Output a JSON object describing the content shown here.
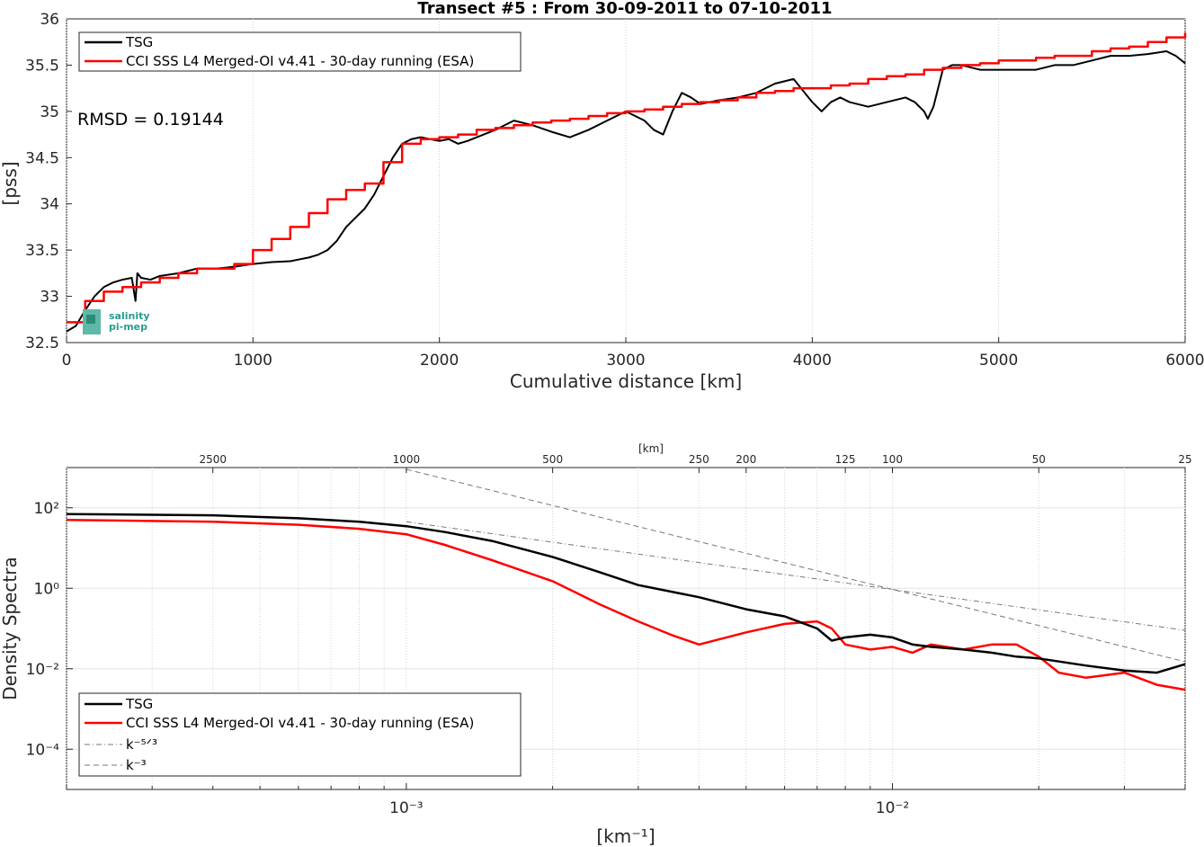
{
  "chart_data": [
    {
      "type": "line",
      "title": "Transect #5 : From 30-09-2011 to 07-10-2011",
      "xlabel": "Cumulative distance [km]",
      "ylabel": "[pss]",
      "xlim": [
        0,
        6000
      ],
      "ylim": [
        32.5,
        36
      ],
      "x_ticks": [
        "0",
        "1000",
        "2000",
        "3000",
        "4000",
        "5000",
        "6000"
      ],
      "y_ticks": [
        "32.5",
        "33",
        "33.5",
        "34",
        "34.5",
        "35",
        "35.5",
        "36"
      ],
      "grid": "vertical",
      "legend_position": "top-left",
      "annotation": "RMSD = 0.19144",
      "logo": {
        "line1": "salinity",
        "line2": "pi-mep"
      },
      "series": [
        {
          "name": "TSG",
          "color": "#000000",
          "x": [
            0,
            50,
            100,
            150,
            200,
            250,
            300,
            350,
            370,
            380,
            400,
            450,
            500,
            600,
            700,
            800,
            900,
            1000,
            1100,
            1200,
            1250,
            1300,
            1350,
            1400,
            1450,
            1500,
            1550,
            1600,
            1650,
            1700,
            1750,
            1800,
            1850,
            1900,
            1950,
            2000,
            2050,
            2100,
            2150,
            2200,
            2300,
            2350,
            2400,
            2500,
            2600,
            2700,
            2800,
            2900,
            3000,
            3100,
            3150,
            3200,
            3250,
            3300,
            3350,
            3400,
            3500,
            3600,
            3700,
            3800,
            3900,
            4000,
            4050,
            4100,
            4150,
            4200,
            4300,
            4400,
            4500,
            4550,
            4600,
            4620,
            4650,
            4700,
            4750,
            4800,
            4900,
            5000,
            5100,
            5200,
            5300,
            5400,
            5500,
            5600,
            5700,
            5800,
            5900,
            5950,
            6000
          ],
          "y": [
            32.62,
            32.68,
            32.85,
            33.0,
            33.1,
            33.15,
            33.18,
            33.2,
            32.95,
            33.25,
            33.2,
            33.18,
            33.22,
            33.25,
            33.3,
            33.3,
            33.32,
            33.35,
            33.37,
            33.38,
            33.4,
            33.42,
            33.45,
            33.5,
            33.6,
            33.75,
            33.85,
            33.95,
            34.1,
            34.3,
            34.5,
            34.65,
            34.7,
            34.72,
            34.7,
            34.68,
            34.7,
            34.65,
            34.68,
            34.72,
            34.8,
            34.85,
            34.9,
            34.85,
            34.78,
            34.72,
            34.8,
            34.9,
            35.0,
            34.9,
            34.8,
            34.75,
            35.0,
            35.2,
            35.15,
            35.08,
            35.12,
            35.15,
            35.2,
            35.3,
            35.35,
            35.1,
            35.0,
            35.1,
            35.15,
            35.1,
            35.05,
            35.1,
            35.15,
            35.1,
            35.0,
            34.92,
            35.05,
            35.45,
            35.5,
            35.5,
            35.45,
            35.45,
            35.45,
            35.45,
            35.5,
            35.5,
            35.55,
            35.6,
            35.6,
            35.62,
            35.65,
            35.6,
            35.52
          ]
        },
        {
          "name": "CCI SSS L4 Merged-OI v4.41 - 30-day running (ESA)",
          "color": "#ff0000",
          "x": [
            0,
            100,
            200,
            300,
            400,
            500,
            600,
            700,
            800,
            900,
            1000,
            1100,
            1200,
            1300,
            1400,
            1500,
            1600,
            1700,
            1800,
            1900,
            2000,
            2100,
            2200,
            2300,
            2400,
            2500,
            2600,
            2700,
            2800,
            2900,
            3000,
            3100,
            3200,
            3300,
            3400,
            3500,
            3600,
            3700,
            3800,
            3900,
            4000,
            4100,
            4200,
            4300,
            4400,
            4500,
            4600,
            4700,
            4800,
            4900,
            5000,
            5100,
            5200,
            5300,
            5400,
            5500,
            5600,
            5700,
            5800,
            5900,
            6000
          ],
          "y": [
            32.72,
            32.95,
            33.05,
            33.1,
            33.15,
            33.2,
            33.25,
            33.3,
            33.3,
            33.35,
            33.5,
            33.62,
            33.75,
            33.9,
            34.05,
            34.15,
            34.22,
            34.45,
            34.65,
            34.7,
            34.72,
            34.75,
            34.8,
            34.82,
            34.85,
            34.88,
            34.9,
            34.92,
            34.95,
            34.98,
            35.0,
            35.02,
            35.05,
            35.08,
            35.1,
            35.12,
            35.15,
            35.2,
            35.22,
            35.25,
            35.25,
            35.28,
            35.3,
            35.35,
            35.38,
            35.4,
            35.45,
            35.47,
            35.5,
            35.52,
            35.55,
            35.55,
            35.58,
            35.6,
            35.6,
            35.65,
            35.68,
            35.7,
            35.75,
            35.8,
            35.85
          ]
        }
      ]
    },
    {
      "type": "line",
      "title": "",
      "xlabel": "[km⁻¹]",
      "ylabel": "Density Spectra",
      "x_scale": "log",
      "y_scale": "log",
      "xlim": [
        0.0002,
        0.04
      ],
      "ylim": [
        1e-05,
        1000
      ],
      "x_ticks": [
        "10⁻³",
        "10⁻²"
      ],
      "y_ticks": [
        "10⁻⁴",
        "10⁻²",
        "10⁰",
        "10²"
      ],
      "top_axis_label": "[km]",
      "top_ticks": [
        "2500",
        "1000",
        "500",
        "250",
        "200",
        "125",
        "100",
        "50",
        "25"
      ],
      "grid": "vertical",
      "legend_position": "bottom-left",
      "series": [
        {
          "name": "TSG",
          "color": "#000000",
          "x": [
            0.0002,
            0.0004,
            0.0006,
            0.0008,
            0.001,
            0.0012,
            0.0015,
            0.002,
            0.0025,
            0.003,
            0.004,
            0.005,
            0.006,
            0.007,
            0.0075,
            0.008,
            0.009,
            0.01,
            0.011,
            0.012,
            0.014,
            0.016,
            0.018,
            0.02,
            0.025,
            0.03,
            0.035,
            0.04
          ],
          "y": [
            70,
            65,
            55,
            45,
            35,
            25,
            15,
            6,
            2.5,
            1.2,
            0.6,
            0.3,
            0.2,
            0.1,
            0.05,
            0.06,
            0.07,
            0.06,
            0.04,
            0.035,
            0.03,
            0.025,
            0.02,
            0.018,
            0.012,
            0.009,
            0.008,
            0.013
          ]
        },
        {
          "name": "CCI SSS L4 Merged-OI v4.41 - 30-day running (ESA)",
          "color": "#ff0000",
          "x": [
            0.0002,
            0.0004,
            0.0006,
            0.0008,
            0.001,
            0.0012,
            0.0015,
            0.002,
            0.0025,
            0.003,
            0.0035,
            0.004,
            0.005,
            0.006,
            0.007,
            0.0075,
            0.008,
            0.009,
            0.01,
            0.011,
            0.012,
            0.014,
            0.016,
            0.018,
            0.02,
            0.022,
            0.025,
            0.03,
            0.035,
            0.04
          ],
          "y": [
            50,
            45,
            38,
            30,
            22,
            12,
            5,
            1.5,
            0.4,
            0.15,
            0.07,
            0.04,
            0.08,
            0.13,
            0.15,
            0.1,
            0.04,
            0.03,
            0.035,
            0.025,
            0.04,
            0.03,
            0.04,
            0.04,
            0.02,
            0.008,
            0.006,
            0.008,
            0.004,
            0.003
          ]
        },
        {
          "name": "k⁻⁵ᐟ³",
          "color": "#777777",
          "x": [
            0.001,
            0.04
          ],
          "y": [
            45,
            0.09
          ]
        },
        {
          "name": "k⁻³",
          "color": "#777777",
          "x": [
            0.001,
            0.04
          ],
          "y": [
            900,
            0.015
          ]
        }
      ]
    }
  ]
}
